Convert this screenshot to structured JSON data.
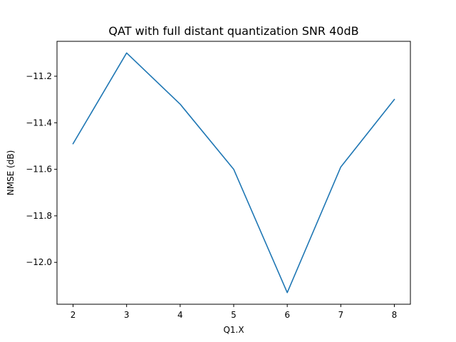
{
  "chart_data": {
    "type": "line",
    "title": "QAT with full distant quantization SNR 40dB",
    "xlabel": "Q1.X",
    "ylabel": "NMSE (dB)",
    "x": [
      2,
      3,
      4,
      5,
      6,
      7,
      8
    ],
    "series": [
      {
        "values": [
          -11.49,
          -11.1,
          -11.32,
          -11.6,
          -12.13,
          -11.59,
          -11.3
        ],
        "color": "#1f77b4"
      }
    ],
    "xlim": [
      1.7,
      8.3
    ],
    "ylim": [
      -12.18,
      -11.05
    ],
    "xticks": [
      2,
      3,
      4,
      5,
      6,
      7,
      8
    ],
    "xtick_labels": [
      "2",
      "3",
      "4",
      "5",
      "6",
      "7",
      "8"
    ],
    "yticks": [
      -11.2,
      -11.4,
      -11.6,
      -11.8,
      -12.0
    ],
    "ytick_labels": [
      "−11.2",
      "−11.4",
      "−11.6",
      "−11.8",
      "−12.0"
    ],
    "grid": false,
    "legend": "none"
  }
}
